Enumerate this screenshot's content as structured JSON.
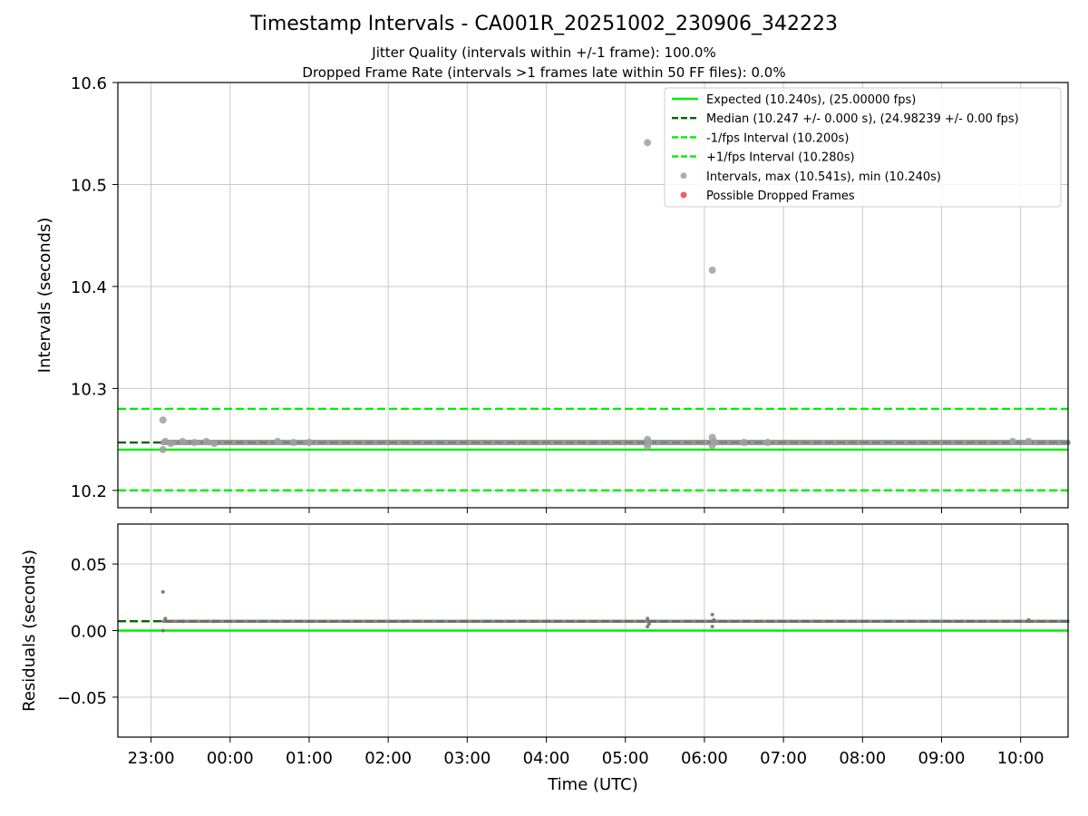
{
  "title": "Timestamp Intervals - CA001R_20251002_230906_342223",
  "subtitle1": "Jitter Quality (intervals within +/-1 frame): 100.0%",
  "subtitle2": "Dropped Frame Rate (intervals >1 frames late within 50 FF files): 0.0%",
  "colors": {
    "expected": "#00ee00",
    "median": "#006400",
    "fps_bounds": "#00ee00",
    "intervals": "#a0a0a0",
    "residuals": "#707070",
    "dropped": "#ee4444",
    "grid": "#c8c8c8"
  },
  "chart_data": [
    {
      "type": "scatter",
      "panel": "top",
      "ylabel": "Intervals (seconds)",
      "ylim": [
        10.183,
        10.6
      ],
      "xlim_hours": [
        -1.42,
        10.6
      ],
      "yticks": [
        "10.2",
        "10.3",
        "10.4",
        "10.5",
        "10.6"
      ],
      "ytick_values": [
        10.2,
        10.3,
        10.4,
        10.5,
        10.6
      ],
      "grid": true,
      "legend_position": "top-right",
      "hlines": [
        {
          "label": "Expected (10.240s), (25.00000 fps)",
          "y": 10.24,
          "style": "solid",
          "color": "#00ee00"
        },
        {
          "label": "Median (10.247 +/- 0.000 s), (24.98239 +/- 0.00 fps)",
          "y": 10.247,
          "style": "dashed",
          "color": "#006400"
        },
        {
          "label": "-1/fps Interval (10.200s)",
          "y": 10.2,
          "style": "dashed",
          "color": "#00ee00"
        },
        {
          "label": "+1/fps Interval (10.280s)",
          "y": 10.28,
          "style": "dashed",
          "color": "#00ee00"
        }
      ],
      "scatter_legend": [
        {
          "label": "Intervals, max (10.541s), min (10.240s)",
          "color": "#a0a0a0"
        },
        {
          "label": "Possible Dropped Frames",
          "color": "#ee4444"
        }
      ],
      "baseline": {
        "x_start": -0.85,
        "x_end": 10.6,
        "y": 10.247
      },
      "points": [
        {
          "x": -0.85,
          "y": 10.269
        },
        {
          "x": -0.85,
          "y": 10.24
        },
        {
          "x": -0.82,
          "y": 10.248
        },
        {
          "x": -0.75,
          "y": 10.246
        },
        {
          "x": -0.6,
          "y": 10.248
        },
        {
          "x": -0.45,
          "y": 10.247
        },
        {
          "x": -0.3,
          "y": 10.248
        },
        {
          "x": -0.2,
          "y": 10.246
        },
        {
          "x": 0.6,
          "y": 10.248
        },
        {
          "x": 0.8,
          "y": 10.247
        },
        {
          "x": 1.0,
          "y": 10.247
        },
        {
          "x": 5.28,
          "y": 10.541
        },
        {
          "x": 5.28,
          "y": 10.25
        },
        {
          "x": 5.28,
          "y": 10.243
        },
        {
          "x": 5.3,
          "y": 10.247
        },
        {
          "x": 6.1,
          "y": 10.416
        },
        {
          "x": 6.1,
          "y": 10.252
        },
        {
          "x": 6.1,
          "y": 10.244
        },
        {
          "x": 6.12,
          "y": 10.248
        },
        {
          "x": 6.5,
          "y": 10.247
        },
        {
          "x": 6.8,
          "y": 10.247
        },
        {
          "x": 9.9,
          "y": 10.248
        },
        {
          "x": 10.1,
          "y": 10.248
        }
      ]
    },
    {
      "type": "scatter",
      "panel": "bottom",
      "ylabel": "Residuals (seconds)",
      "xlabel": "Time (UTC)",
      "ylim": [
        -0.08,
        0.08
      ],
      "xlim_hours": [
        -1.42,
        10.6
      ],
      "yticks": [
        "0.05",
        "0.00",
        "−0.05"
      ],
      "ytick_values": [
        0.05,
        0.0,
        -0.05
      ],
      "grid": true,
      "hlines": [
        {
          "y": 0.0,
          "style": "solid",
          "color": "#00ee00"
        },
        {
          "y": 0.007,
          "style": "dashed",
          "color": "#006400"
        }
      ],
      "baseline": {
        "x_start": -0.85,
        "x_end": 10.6,
        "y": 0.007
      },
      "points": [
        {
          "x": -0.85,
          "y": 0.029
        },
        {
          "x": -0.85,
          "y": 0.0
        },
        {
          "x": -0.82,
          "y": 0.009
        },
        {
          "x": -0.6,
          "y": 0.007
        },
        {
          "x": -0.2,
          "y": 0.007
        },
        {
          "x": 5.28,
          "y": 0.009
        },
        {
          "x": 5.28,
          "y": 0.003
        },
        {
          "x": 5.3,
          "y": 0.005
        },
        {
          "x": 6.1,
          "y": 0.012
        },
        {
          "x": 6.1,
          "y": 0.003
        },
        {
          "x": 6.12,
          "y": 0.008
        },
        {
          "x": 10.1,
          "y": 0.008
        }
      ]
    }
  ],
  "xaxis": {
    "xlabel": "Time (UTC)",
    "ticks": [
      {
        "label": "23:00",
        "hours": -1
      },
      {
        "label": "00:00",
        "hours": 0
      },
      {
        "label": "01:00",
        "hours": 1
      },
      {
        "label": "02:00",
        "hours": 2
      },
      {
        "label": "03:00",
        "hours": 3
      },
      {
        "label": "04:00",
        "hours": 4
      },
      {
        "label": "05:00",
        "hours": 5
      },
      {
        "label": "06:00",
        "hours": 6
      },
      {
        "label": "07:00",
        "hours": 7
      },
      {
        "label": "08:00",
        "hours": 8
      },
      {
        "label": "09:00",
        "hours": 9
      },
      {
        "label": "10:00",
        "hours": 10
      }
    ]
  }
}
